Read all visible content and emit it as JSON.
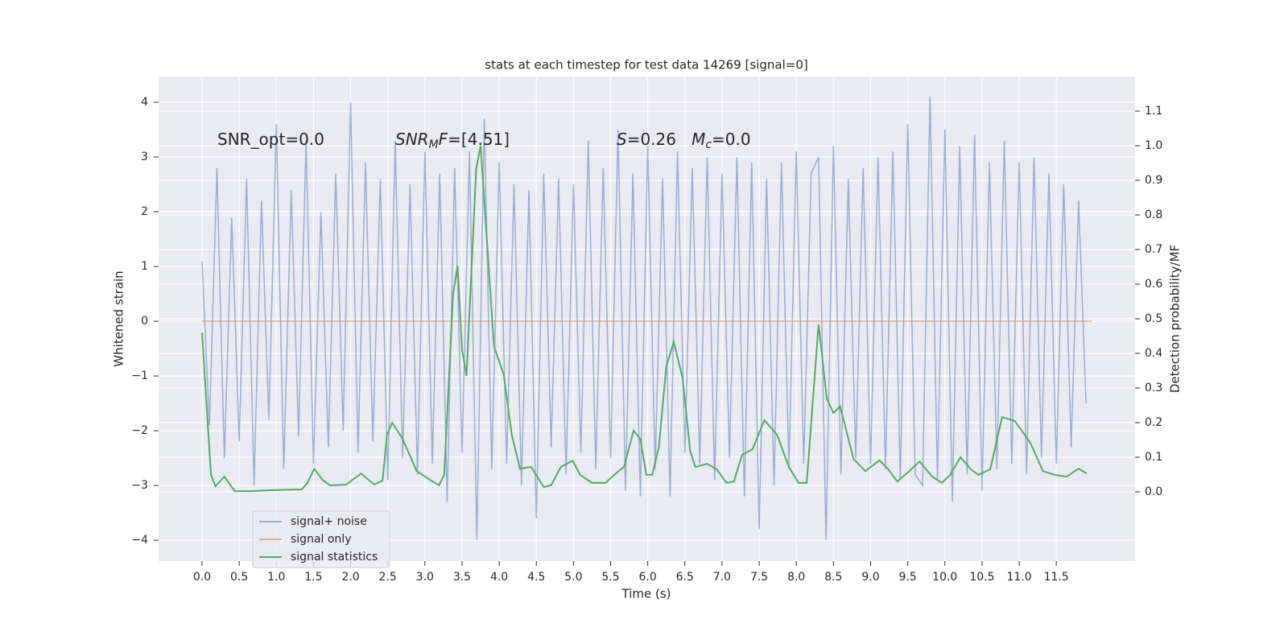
{
  "chart_data": {
    "type": "line",
    "title": "stats at each timestep for test data 14269 [signal=0]",
    "xlabel": "Time (s)",
    "ylabel": "Whitened strain",
    "y2label": "Detection probability/MF",
    "annotations": [
      [
        {
          "text": "SNR_opt=0.0"
        }
      ],
      [
        {
          "text": "SNR",
          "italic": true
        },
        {
          "text": "M",
          "italic": true,
          "sub": true
        },
        {
          "text": "F",
          "italic": true
        },
        {
          "text": "=[4.51]"
        }
      ],
      [
        {
          "text": "S",
          "italic": true
        },
        {
          "text": "=0.26   "
        },
        {
          "text": "M",
          "italic": true
        },
        {
          "text": "c",
          "italic": true,
          "sub": true
        },
        {
          "text": "=0.0"
        }
      ]
    ],
    "xlim": [
      -0.585,
      12.56
    ],
    "ylim": [
      -4.38,
      4.47
    ],
    "y2lim": [
      -0.2,
      1.2
    ],
    "xticks": [
      {
        "value": 0,
        "label": "0.0"
      },
      0.5,
      {
        "value": 1,
        "label": "1.0"
      },
      1.5,
      {
        "value": 2,
        "label": "2.0"
      },
      2.5,
      {
        "value": 3,
        "label": "3.0"
      },
      3.5,
      {
        "value": 4,
        "label": "4.0"
      },
      4.5,
      {
        "value": 5,
        "label": "5.0"
      },
      5.5,
      {
        "value": 6,
        "label": "6.0"
      },
      6.5,
      {
        "value": 7,
        "label": "7.0"
      },
      7.5,
      {
        "value": 8,
        "label": "8.0"
      },
      8.5,
      {
        "value": 9,
        "label": "9.0"
      },
      9.5,
      {
        "value": 10,
        "label": "10.0"
      },
      10.5,
      {
        "value": 11,
        "label": "11.0"
      },
      11.5
    ],
    "yticks": [
      {
        "value": -4,
        "label": "−4"
      },
      {
        "value": -3,
        "label": "−3"
      },
      {
        "value": -2,
        "label": "−2"
      },
      {
        "value": -1,
        "label": "−1"
      },
      0,
      1,
      2,
      3,
      4
    ],
    "y2ticks": [
      {
        "value": 0,
        "label": "0.0"
      },
      0.1,
      0.2,
      0.3,
      0.4,
      0.5,
      0.6,
      0.7,
      0.8,
      0.9,
      {
        "value": 1,
        "label": "1.0"
      },
      1.1
    ],
    "grid": true,
    "legend": "lower left",
    "series": [
      {
        "name": "signal+ noise",
        "color": "#4c72b0",
        "opacity": 0.5,
        "x": [
          0,
          0.1,
          0.2,
          0.3,
          0.4,
          0.5,
          0.6,
          0.7,
          0.8,
          0.9,
          1,
          1.1,
          1.2,
          1.3,
          1.4,
          1.5,
          1.6,
          1.7,
          1.8,
          1.9,
          2,
          2.1,
          2.2,
          2.3,
          2.4,
          2.5,
          2.6,
          2.7,
          2.8,
          2.9,
          3,
          3.1,
          3.2,
          3.3,
          3.4,
          3.5,
          3.6,
          3.7,
          3.8,
          3.9,
          4,
          4.1,
          4.2,
          4.3,
          4.4,
          4.5,
          4.6,
          4.7,
          4.8,
          4.9,
          5,
          5.1,
          5.2,
          5.3,
          5.4,
          5.5,
          5.6,
          5.7,
          5.8,
          5.9,
          6,
          6.1,
          6.2,
          6.3,
          6.4,
          6.5,
          6.6,
          6.7,
          6.8,
          6.9,
          7,
          7.1,
          7.2,
          7.3,
          7.4,
          7.5,
          7.6,
          7.7,
          7.8,
          7.9,
          8,
          8.1,
          8.2,
          8.3,
          8.4,
          8.5,
          8.6,
          8.7,
          8.8,
          8.9,
          9,
          9.1,
          9.2,
          9.3,
          9.4,
          9.5,
          9.6,
          9.7,
          9.8,
          9.9,
          10,
          10.1,
          10.2,
          10.3,
          10.4,
          10.5,
          10.6,
          10.7,
          10.8,
          10.9,
          11,
          11.1,
          11.2,
          11.3,
          11.4,
          11.5,
          11.6,
          11.7,
          11.8,
          11.9
        ],
        "values": [
          1.1,
          -1.9,
          2.8,
          -2.5,
          1.9,
          -2.2,
          2.6,
          -3.0,
          2.2,
          -1.8,
          3.6,
          -2.7,
          2.4,
          -2.1,
          3.3,
          -2.6,
          2.0,
          -2.3,
          2.7,
          -2.0,
          4.0,
          -2.4,
          2.9,
          -2.2,
          2.6,
          -2.9,
          3.3,
          -2.5,
          2.5,
          -2.8,
          3.1,
          -2.6,
          2.7,
          -3.3,
          2.8,
          -2.4,
          3.1,
          -4.0,
          3.7,
          -2.7,
          2.9,
          -2.6,
          2.5,
          -3.0,
          2.4,
          -3.6,
          2.7,
          -2.3,
          2.6,
          -2.8,
          2.5,
          -2.4,
          3.3,
          -2.7,
          2.8,
          -2.5,
          3.5,
          -3.1,
          2.7,
          -3.2,
          3.2,
          -2.7,
          2.6,
          -3.2,
          3.1,
          -2.4,
          2.8,
          -2.6,
          3.0,
          -2.9,
          2.7,
          -2.5,
          3.0,
          -3.2,
          2.9,
          -3.8,
          2.6,
          -3.0,
          2.9,
          -2.7,
          3.1,
          -2.6,
          2.7,
          3.0,
          -4.0,
          3.2,
          -2.8,
          2.6,
          -2.5,
          2.8,
          -2.6,
          3.0,
          -2.7,
          3.1,
          -2.9,
          3.6,
          -2.8,
          -3.0,
          4.1,
          -2.9,
          3.5,
          -3.3,
          3.2,
          -2.8,
          3.4,
          -3.1,
          2.9,
          -2.7,
          3.3,
          -2.6,
          2.9,
          -2.8,
          3.0,
          -2.5,
          2.7,
          -2.6,
          2.5,
          -2.3,
          2.2,
          -1.5
        ]
      },
      {
        "name": "signal only",
        "color": "#dd8452",
        "opacity": 0.6,
        "x": [
          0,
          11.98
        ],
        "values": [
          0,
          0
        ]
      },
      {
        "name": "signal statistics",
        "color": "#55a868",
        "axis": "y2",
        "x": [
          0,
          0.12,
          0.18,
          0.3,
          0.44,
          0.64,
          0.96,
          1.34,
          1.42,
          1.51,
          1.62,
          1.72,
          1.94,
          2.14,
          2.32,
          2.43,
          2.49,
          2.56,
          2.7,
          2.89,
          3.08,
          3.19,
          3.26,
          3.38,
          3.44,
          3.5,
          3.56,
          3.69,
          3.75,
          3.8,
          3.93,
          4.06,
          4.17,
          4.28,
          4.43,
          4.6,
          4.7,
          4.83,
          4.99,
          5.09,
          5.25,
          5.43,
          5.57,
          5.68,
          5.81,
          5.9,
          5.98,
          6.06,
          6.15,
          6.25,
          6.35,
          6.47,
          6.57,
          6.64,
          6.8,
          6.93,
          7.06,
          7.16,
          7.27,
          7.41,
          7.57,
          7.74,
          7.9,
          8.03,
          8.14,
          8.3,
          8.41,
          8.5,
          8.59,
          8.77,
          8.93,
          9.12,
          9.23,
          9.36,
          9.52,
          9.66,
          9.83,
          9.96,
          10.07,
          10.21,
          10.35,
          10.45,
          10.61,
          10.77,
          10.94,
          11.15,
          11.32,
          11.48,
          11.64,
          11.8,
          11.91
        ],
        "values": [
          0.46,
          0.05,
          0.016,
          0.044,
          0.002,
          0.002,
          0.005,
          0.007,
          0.026,
          0.067,
          0.035,
          0.019,
          0.021,
          0.053,
          0.021,
          0.033,
          0.165,
          0.2,
          0.153,
          0.06,
          0.033,
          0.019,
          0.049,
          0.572,
          0.653,
          0.41,
          0.335,
          0.933,
          1.0,
          0.84,
          0.42,
          0.34,
          0.165,
          0.067,
          0.072,
          0.014,
          0.019,
          0.072,
          0.09,
          0.049,
          0.026,
          0.026,
          0.053,
          0.072,
          0.177,
          0.153,
          0.049,
          0.049,
          0.13,
          0.363,
          0.433,
          0.328,
          0.119,
          0.072,
          0.081,
          0.065,
          0.026,
          0.03,
          0.107,
          0.123,
          0.207,
          0.165,
          0.072,
          0.026,
          0.026,
          0.484,
          0.27,
          0.228,
          0.247,
          0.095,
          0.06,
          0.091,
          0.067,
          0.03,
          0.06,
          0.088,
          0.044,
          0.026,
          0.049,
          0.1,
          0.065,
          0.049,
          0.065,
          0.216,
          0.205,
          0.142,
          0.06,
          0.049,
          0.044,
          0.067,
          0.053
        ]
      }
    ]
  }
}
